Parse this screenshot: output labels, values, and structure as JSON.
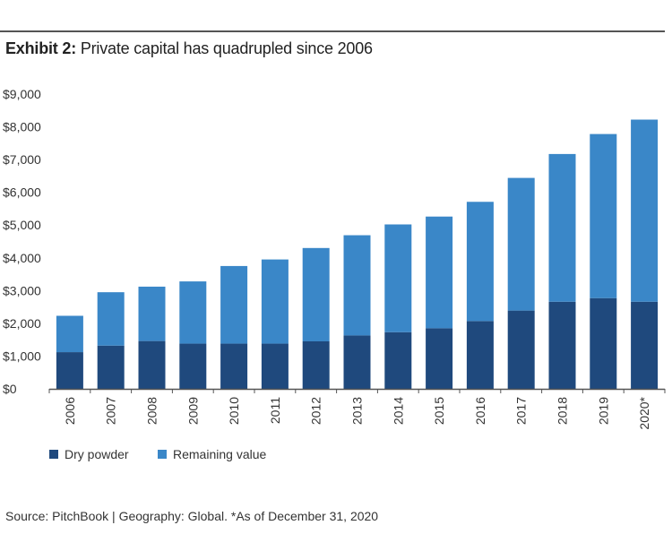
{
  "header": {
    "exhibit_label": "Exhibit 2:",
    "title_text": "Private capital has quadrupled since 2006"
  },
  "footer": {
    "source": "Source: PitchBook | Geography: Global. *As of December 31, 2020"
  },
  "colors": {
    "dry_powder": "#1f497d",
    "remaining_value": "#3a87c8",
    "axis": "#555555"
  },
  "chart_data": {
    "type": "bar",
    "stacked": true,
    "title": "Exhibit 2: Private capital has quadrupled since 2006",
    "xlabel": "",
    "ylabel": "",
    "categories": [
      "2006",
      "2007",
      "2008",
      "2009",
      "2010",
      "2011",
      "2012",
      "2013",
      "2014",
      "2015",
      "2016",
      "2017",
      "2018",
      "2019",
      "2020*"
    ],
    "ylim": [
      0,
      9000
    ],
    "yticks": [
      0,
      1000,
      2000,
      3000,
      4000,
      5000,
      6000,
      7000,
      8000,
      9000
    ],
    "ytick_labels": [
      "$0",
      "$1,000",
      "$2,000",
      "$3,000",
      "$4,000",
      "$5,000",
      "$6,000",
      "$7,000",
      "$8,000",
      "$9,000"
    ],
    "grid": false,
    "legend_position": "bottom-left",
    "series": [
      {
        "name": "Dry powder",
        "color": "#1f497d",
        "values": [
          1120,
          1320,
          1460,
          1380,
          1380,
          1380,
          1450,
          1630,
          1730,
          1850,
          2070,
          2390,
          2660,
          2770,
          2660
        ]
      },
      {
        "name": "Remaining value",
        "color": "#3a87c8",
        "values": [
          1110,
          1630,
          1660,
          1900,
          2370,
          2570,
          2850,
          3060,
          3290,
          3410,
          3640,
          4050,
          4510,
          5010,
          5560
        ]
      }
    ]
  }
}
